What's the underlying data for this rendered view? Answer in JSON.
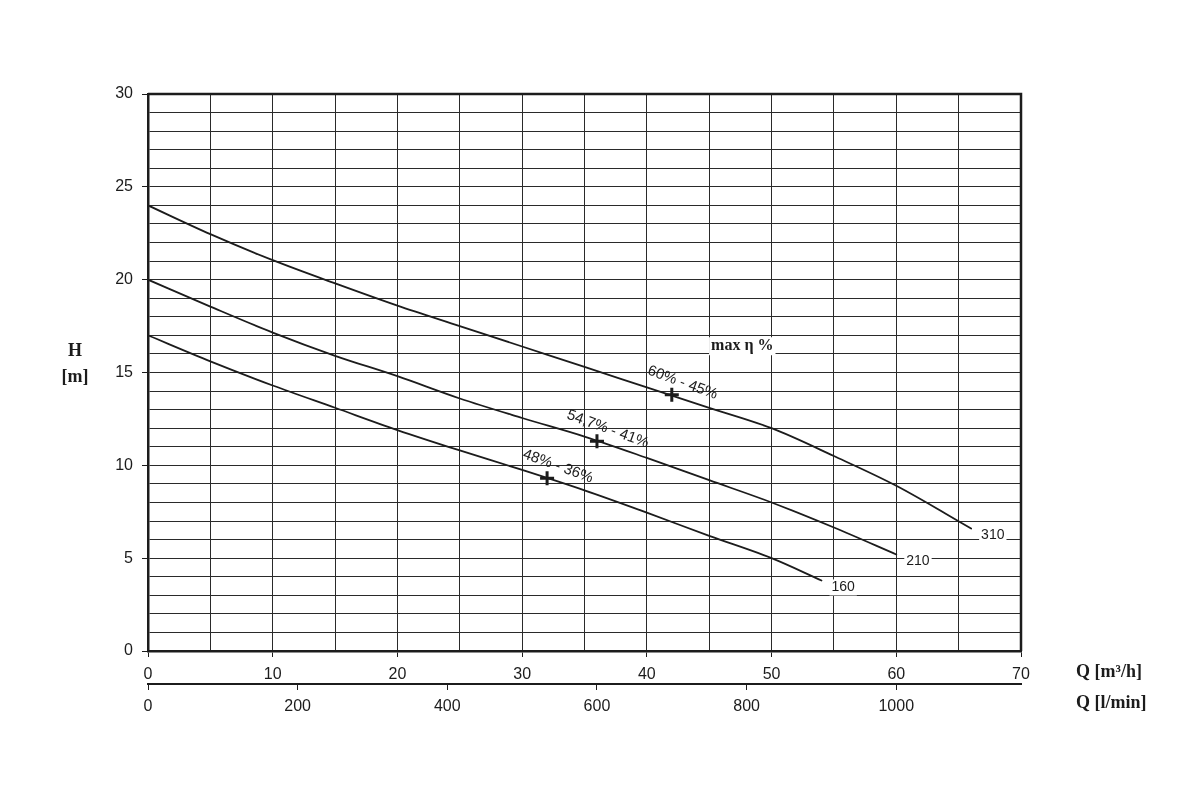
{
  "chart_data": {
    "type": "line",
    "xlabel": "Q [m³/h]",
    "x2label": "Q [l/min]",
    "ylabel": "H [m]",
    "xlim": [
      0,
      70
    ],
    "xticks": [
      0,
      {
        "value": 5,
        "label": null
      },
      10,
      {
        "value": 15,
        "label": null
      },
      20,
      {
        "value": 25,
        "label": null
      },
      30,
      {
        "value": 35,
        "label": null
      },
      40,
      {
        "value": 45,
        "label": null
      },
      50,
      {
        "value": 55,
        "label": null
      },
      60,
      {
        "value": 65,
        "label": null
      },
      70
    ],
    "x2lim": [
      0,
      1166.7
    ],
    "x2ticks": [
      0,
      200,
      400,
      600,
      800,
      1000
    ],
    "ylim": [
      0,
      30
    ],
    "yticks": [
      0,
      {
        "value": 1,
        "label": null
      },
      {
        "value": 2,
        "label": null
      },
      {
        "value": 3,
        "label": null
      },
      {
        "value": 4,
        "label": null
      },
      5,
      {
        "value": 6,
        "label": null
      },
      {
        "value": 7,
        "label": null
      },
      {
        "value": 8,
        "label": null
      },
      {
        "value": 9,
        "label": null
      },
      10,
      {
        "value": 11,
        "label": null
      },
      {
        "value": 12,
        "label": null
      },
      {
        "value": 13,
        "label": null
      },
      {
        "value": 14,
        "label": null
      },
      15,
      {
        "value": 16,
        "label": null
      },
      {
        "value": 17,
        "label": null
      },
      {
        "value": 18,
        "label": null
      },
      {
        "value": 19,
        "label": null
      },
      20,
      {
        "value": 21,
        "label": null
      },
      {
        "value": 22,
        "label": null
      },
      {
        "value": 23,
        "label": null
      },
      {
        "value": 24,
        "label": null
      },
      25,
      {
        "value": 26,
        "label": null
      },
      {
        "value": 27,
        "label": null
      },
      {
        "value": 28,
        "label": null
      },
      {
        "value": 29,
        "label": null
      },
      30
    ],
    "grid": true,
    "marker": "none",
    "line_style": "solid",
    "series": [
      {
        "name": "310",
        "color": "#1c1c1c",
        "x": [
          0,
          5,
          10,
          15,
          20,
          25,
          30,
          35,
          40,
          45,
          50,
          55,
          60,
          66
        ],
        "values": [
          24,
          22.45,
          21.05,
          19.8,
          18.6,
          17.5,
          16.4,
          15.3,
          14.2,
          13.1,
          12.0,
          10.5,
          8.9,
          6.6
        ]
      },
      {
        "name": "210",
        "color": "#1c1c1c",
        "x": [
          0,
          5,
          10,
          15,
          20,
          25,
          30,
          35,
          40,
          45,
          50,
          55,
          60
        ],
        "values": [
          20,
          18.55,
          17.15,
          15.9,
          14.8,
          13.6,
          12.55,
          11.55,
          10.4,
          9.2,
          8.0,
          6.65,
          5.2
        ]
      },
      {
        "name": "160",
        "color": "#1c1c1c",
        "x": [
          0,
          5,
          10,
          15,
          20,
          25,
          30,
          35,
          40,
          45,
          50,
          54
        ],
        "values": [
          17,
          15.6,
          14.3,
          13.1,
          11.9,
          10.8,
          9.75,
          8.65,
          7.45,
          6.2,
          5.0,
          3.8
        ]
      },
      {
        "type": "scatter",
        "color": "#1c1c1c",
        "marker": "cross",
        "x": [
          32,
          36,
          42
        ],
        "values": [
          9.3,
          11.3,
          13.8
        ]
      }
    ],
    "annotations": [
      "max η %",
      {
        "text": "48% - 36%",
        "x": 32,
        "y": 9.3
      },
      {
        "text": "54,7% - 41%",
        "x": 36,
        "y": 11.3
      },
      {
        "text": "60% - 45%",
        "x": 42,
        "y": 13.8
      }
    ]
  }
}
